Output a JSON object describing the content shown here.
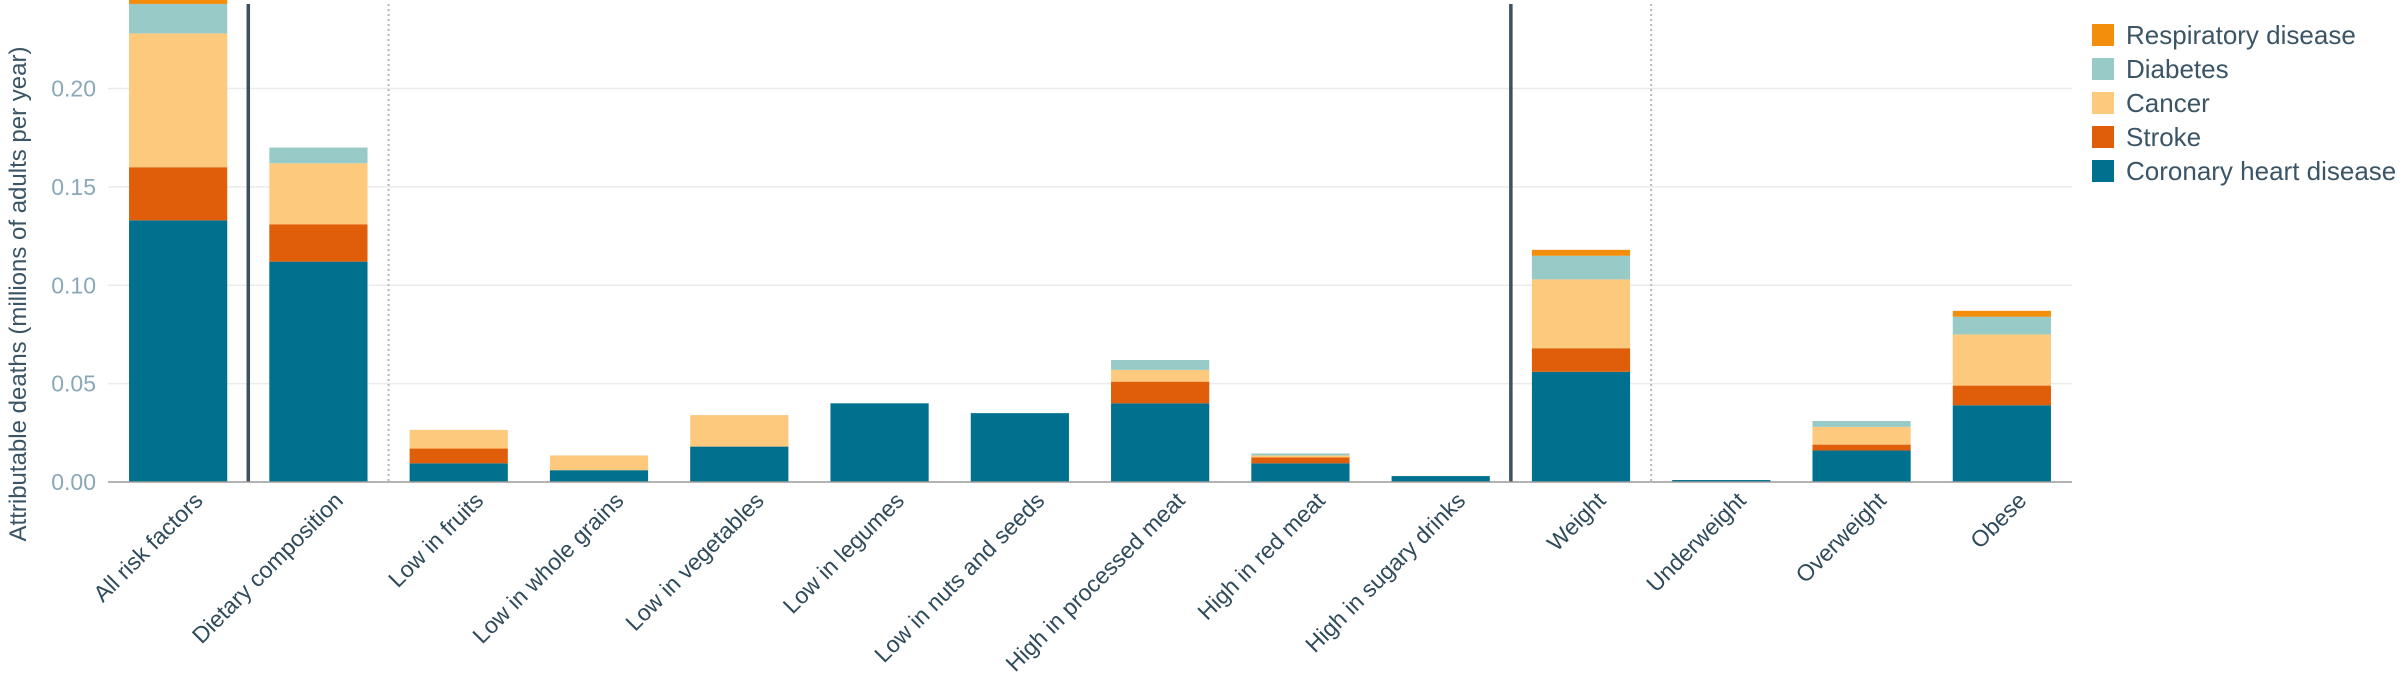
{
  "chart_data": {
    "type": "bar",
    "stacked": true,
    "ylabel": "Attributable deaths (millions of adults per year)",
    "ylim": [
      0,
      0.245
    ],
    "yticks": [
      0.0,
      0.05,
      0.1,
      0.15,
      0.2
    ],
    "ytick_labels": [
      "0.00",
      "0.05",
      "0.10",
      "0.15",
      "0.20"
    ],
    "grid": true,
    "legend_position": "top-right",
    "categories": [
      "All risk factors",
      "Dietary composition",
      "Low in fruits",
      "Low in whole grains",
      "Low in vegetables",
      "Low in legumes",
      "Low in nuts and seeds",
      "High in processed meat",
      "High in red meat",
      "High in sugary drinks",
      "Weight",
      "Underweight",
      "Overweight",
      "Obese"
    ],
    "series": [
      {
        "name": "Coronary heart disease",
        "color": "#00708f",
        "values": [
          0.133,
          0.112,
          0.0095,
          0.006,
          0.018,
          0.04,
          0.035,
          0.04,
          0.0095,
          0.003,
          0.056,
          0.001,
          0.016,
          0.039
        ]
      },
      {
        "name": "Stroke",
        "color": "#e05e0a",
        "values": [
          0.027,
          0.019,
          0.0075,
          0.0,
          0.0,
          0.0,
          0.0,
          0.011,
          0.003,
          0.0,
          0.012,
          0.0,
          0.003,
          0.01
        ]
      },
      {
        "name": "Cancer",
        "color": "#fdc97c",
        "values": [
          0.068,
          0.031,
          0.0095,
          0.0075,
          0.016,
          0.0,
          0.0,
          0.006,
          0.001,
          0.0,
          0.035,
          0.0,
          0.009,
          0.026
        ]
      },
      {
        "name": "Diabetes",
        "color": "#98cac8",
        "values": [
          0.015,
          0.008,
          0.0,
          0.0,
          0.0,
          0.0,
          0.0,
          0.005,
          0.001,
          0.0,
          0.012,
          0.0,
          0.003,
          0.009
        ]
      },
      {
        "name": "Respiratory disease",
        "color": "#f28e0c",
        "values": [
          0.003,
          0.0,
          0.0,
          0.0,
          0.0,
          0.0,
          0.0,
          0.0,
          0.0,
          0.0,
          0.003,
          0.0,
          0.0,
          0.003
        ]
      }
    ],
    "legend_order": [
      "Respiratory disease",
      "Diabetes",
      "Cancer",
      "Stroke",
      "Coronary heart disease"
    ],
    "separators_after": [
      {
        "index": 0,
        "style": "solid"
      },
      {
        "index": 1,
        "style": "dotted"
      },
      {
        "index": 9,
        "style": "solid"
      },
      {
        "index": 10,
        "style": "dotted"
      }
    ]
  }
}
